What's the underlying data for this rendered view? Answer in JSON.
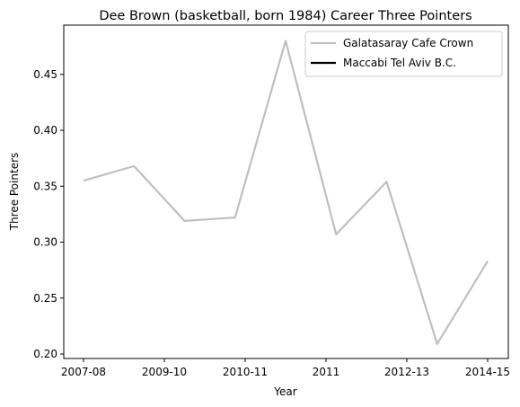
{
  "chart_data": {
    "type": "line",
    "title": "Dee Brown (basketball, born 1984) Career Three Pointers",
    "xlabel": "Year",
    "ylabel": "Three Pointers",
    "x_tick_labels": [
      "2007-08",
      "2009-10",
      "2010-11",
      "2011",
      "2012-13",
      "2014-15"
    ],
    "y_ticks": [
      0.2,
      0.25,
      0.3,
      0.35,
      0.4,
      0.45
    ],
    "ylim": [
      0.196,
      0.494
    ],
    "series": [
      {
        "name": "Galatasaray Cafe Crown",
        "color": "#bfbfbf",
        "values": [
          0.355,
          0.368,
          0.319,
          0.322,
          0.48,
          0.307,
          0.354,
          0.209,
          0.283
        ]
      },
      {
        "name": "Maccabi Tel Aviv B.C.",
        "color": "#000000",
        "values": []
      }
    ],
    "legend_position": "top-right",
    "grid": false
  }
}
